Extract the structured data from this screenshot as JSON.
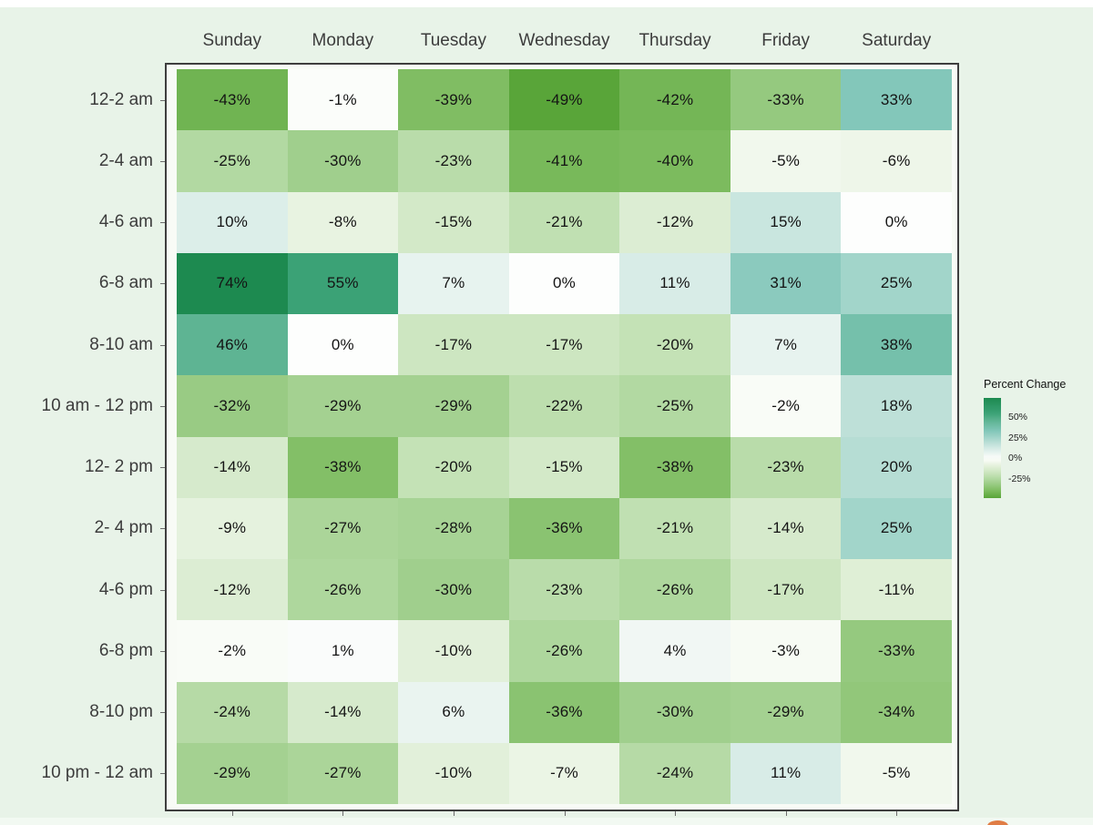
{
  "chart_data": {
    "type": "heatmap",
    "legend_title": "Percent Change",
    "columns": [
      "Sunday",
      "Monday",
      "Tuesday",
      "Wednesday",
      "Thursday",
      "Friday",
      "Saturday"
    ],
    "rows": [
      "12-2 am",
      "2-4 am",
      "4-6 am",
      "6-8 am",
      "8-10 am",
      "10 am - 12 pm",
      "12- 2 pm",
      "2- 4 pm",
      "4-6 pm",
      "6-8 pm",
      "8-10 pm",
      "10 pm - 12 am"
    ],
    "values": [
      [
        -43,
        -1,
        -39,
        -49,
        -42,
        -33,
        33
      ],
      [
        -25,
        -30,
        -23,
        -41,
        -40,
        -5,
        -6
      ],
      [
        10,
        -8,
        -15,
        -21,
        -12,
        15,
        0
      ],
      [
        74,
        55,
        7,
        0,
        11,
        31,
        25
      ],
      [
        46,
        0,
        -17,
        -17,
        -20,
        7,
        38
      ],
      [
        -32,
        -29,
        -29,
        -22,
        -25,
        -2,
        18
      ],
      [
        -14,
        -38,
        -20,
        -15,
        -38,
        -23,
        20
      ],
      [
        -9,
        -27,
        -28,
        -36,
        -21,
        -14,
        25
      ],
      [
        -12,
        -26,
        -30,
        -23,
        -26,
        -17,
        -11
      ],
      [
        -2,
        1,
        -10,
        -26,
        4,
        -3,
        -33
      ],
      [
        -24,
        -14,
        6,
        -36,
        -30,
        -29,
        -34
      ],
      [
        -29,
        -27,
        -10,
        -7,
        -24,
        11,
        -5
      ]
    ],
    "value_suffix": "%",
    "legend_ticks": [
      {
        "label": "50%",
        "value": 50
      },
      {
        "label": "25%",
        "value": 25
      },
      {
        "label": "0%",
        "value": 0
      },
      {
        "label": "-25%",
        "value": -25
      }
    ],
    "scale_domain": [
      -49,
      74
    ],
    "color_scale_stops": [
      [
        -50,
        "#55a335"
      ],
      [
        -40,
        "#7cbb5e"
      ],
      [
        -30,
        "#a0cf8d"
      ],
      [
        -20,
        "#c4e2b6"
      ],
      [
        -10,
        "#e2f0da"
      ],
      [
        -3,
        "#f7fbf4"
      ],
      [
        0,
        "#fdfefd"
      ],
      [
        4,
        "#f1f7f4"
      ],
      [
        10,
        "#dceee9"
      ],
      [
        20,
        "#b6ddd4"
      ],
      [
        33,
        "#83c7ba"
      ],
      [
        46,
        "#5eb493"
      ],
      [
        55,
        "#3ba276"
      ],
      [
        74,
        "#1d8a50"
      ]
    ],
    "colors": {
      "page_background": "#e8f3e8",
      "panel_background": "#f8fbf6",
      "panel_border": "#3e3e3e",
      "cell_text": "#141414",
      "axis_text": "#3c3c3c",
      "cursor_orange": "#e07d45"
    }
  }
}
